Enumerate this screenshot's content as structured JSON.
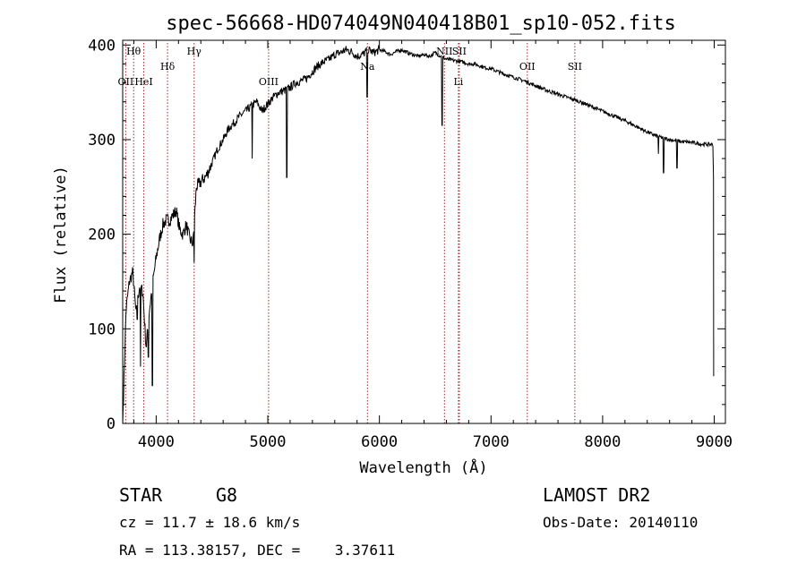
{
  "title": "spec-56668-HD074049N040418B01_sp10-052.fits",
  "chart_data": {
    "type": "line",
    "xlabel": "Wavelength (Å)",
    "ylabel": "Flux (relative)",
    "xlim": [
      3700,
      9100
    ],
    "ylim": [
      0,
      405
    ],
    "xticks": [
      4000,
      5000,
      6000,
      7000,
      8000,
      9000
    ],
    "yticks": [
      0,
      100,
      200,
      300,
      400
    ],
    "series": [
      {
        "x": [
          3700,
          3730,
          3760,
          3790,
          3820,
          3850,
          3880,
          3910,
          3940,
          3970,
          4000,
          4030,
          4060,
          4090,
          4120,
          4150,
          4180,
          4210,
          4240,
          4270,
          4300,
          4330,
          4360,
          4400,
          4450,
          4500,
          4550,
          4600,
          4650,
          4700,
          4750,
          4800,
          4850,
          4900,
          4950,
          5000,
          5050,
          5100,
          5150,
          5200,
          5250,
          5300,
          5350,
          5400,
          5450,
          5500,
          5550,
          5600,
          5650,
          5700,
          5750,
          5800,
          5850,
          5900,
          5950,
          6000,
          6050,
          6100,
          6150,
          6200,
          6250,
          6300,
          6350,
          6400,
          6450,
          6500,
          6550,
          6600,
          6650,
          6700,
          6750,
          6800,
          6850,
          6900,
          6950,
          7000,
          7100,
          7200,
          7300,
          7400,
          7500,
          7600,
          7700,
          7800,
          7900,
          8000,
          8100,
          8200,
          8300,
          8400,
          8500,
          8600,
          8700,
          8800,
          8900,
          8990
        ],
        "y": [
          0,
          120,
          150,
          160,
          115,
          145,
          140,
          80,
          120,
          150,
          175,
          195,
          210,
          215,
          215,
          220,
          225,
          205,
          200,
          210,
          195,
          190,
          250,
          255,
          262,
          275,
          290,
          300,
          312,
          318,
          325,
          330,
          335,
          340,
          330,
          338,
          345,
          350,
          352,
          355,
          360,
          362,
          365,
          372,
          378,
          382,
          385,
          390,
          392,
          395,
          393,
          388,
          390,
          395,
          392,
          395,
          393,
          390,
          393,
          395,
          392,
          390,
          388,
          390,
          388,
          392,
          388,
          385,
          384,
          383,
          382,
          380,
          380,
          378,
          376,
          375,
          370,
          366,
          362,
          357,
          352,
          348,
          344,
          340,
          335,
          330,
          325,
          320,
          314,
          308,
          303,
          300,
          298,
          297,
          295,
          295
        ]
      }
    ],
    "absorption_dips": [
      [
        3830,
        110
      ],
      [
        3860,
        60
      ],
      [
        3930,
        70
      ],
      [
        3965,
        40
      ],
      [
        4340,
        170
      ],
      [
        4860,
        280
      ],
      [
        5170,
        260
      ],
      [
        5890,
        345
      ],
      [
        6563,
        315
      ],
      [
        8500,
        285
      ],
      [
        8545,
        265
      ],
      [
        8665,
        270
      ]
    ],
    "lines": [
      {
        "label": "Hθ",
        "x": 3798,
        "row": 1
      },
      {
        "label": "OII",
        "x": 3727,
        "row": 3
      },
      {
        "label": "HeI",
        "x": 3889,
        "row": 3
      },
      {
        "label": "Hδ",
        "x": 4102,
        "row": 2
      },
      {
        "label": "Hγ",
        "x": 4340,
        "row": 1
      },
      {
        "label": "OIII",
        "x": 5007,
        "row": 3
      },
      {
        "label": "Na",
        "x": 5893,
        "row": 2
      },
      {
        "label": "NII",
        "x": 6583,
        "row": 1
      },
      {
        "label": "SII",
        "x": 6716,
        "row": 1
      },
      {
        "label": "Li",
        "x": 6708,
        "row": 3
      },
      {
        "label": "OII",
        "x": 7325,
        "row": 2
      },
      {
        "label": "SII",
        "x": 7751,
        "row": 2
      }
    ],
    "line_color": "#000000",
    "marker_color": "#a0282a"
  },
  "info": {
    "object": "STAR",
    "subclass": "G8",
    "survey": "LAMOST DR2",
    "cz": "cz = 11.7 ± 18.6 km/s",
    "obs_date": "Obs-Date: 20140110",
    "coords": "RA = 113.38157, DEC =    3.37611"
  }
}
